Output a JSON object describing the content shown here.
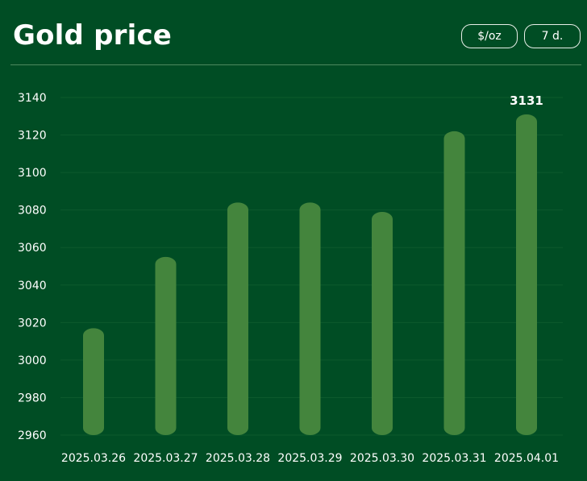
{
  "header": {
    "title": "Gold price",
    "unit_button": "$/oz",
    "range_button": "7 d."
  },
  "colors": {
    "background": "#004d24",
    "bar": "#44853d",
    "grid": "#0d5a2d"
  },
  "chart_data": {
    "type": "bar",
    "title": "Gold price",
    "xlabel": "",
    "ylabel": "",
    "categories": [
      "2025.03.26",
      "2025.03.27",
      "2025.03.28",
      "2025.03.29",
      "2025.03.30",
      "2025.03.31",
      "2025.04.01"
    ],
    "values": [
      3017,
      3055,
      3084,
      3084,
      3079,
      3122,
      3131
    ],
    "ylim": [
      2960,
      3140
    ],
    "yticks": [
      2960,
      2980,
      3000,
      3020,
      3040,
      3060,
      3080,
      3100,
      3120,
      3140
    ],
    "data_labels": [
      {
        "category": "2025.04.01",
        "text": "3131"
      }
    ],
    "grid": true,
    "legend": "none"
  }
}
